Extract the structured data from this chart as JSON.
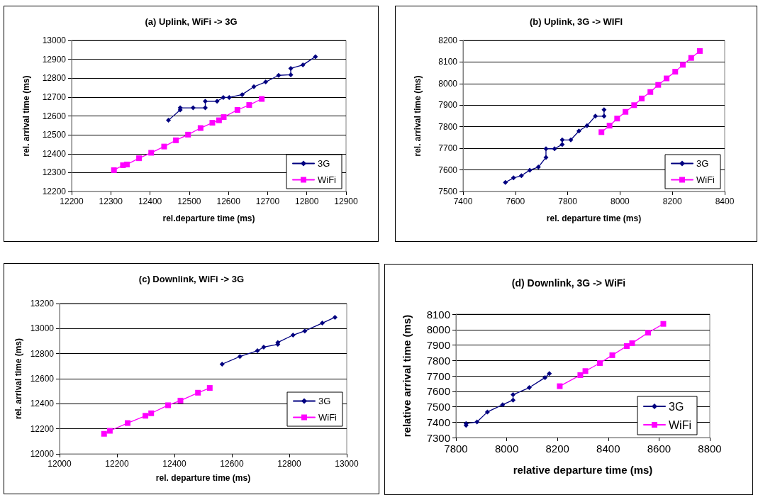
{
  "chart_data": [
    {
      "type": "line",
      "title": "(a) Uplink, WiFi -> 3G",
      "xlabel": "rel.departure time (ms)",
      "ylabel": "rel. arrival time (ms)",
      "xlim": [
        12200,
        12900
      ],
      "xticks": [
        12200,
        12300,
        12400,
        12500,
        12600,
        12700,
        12800,
        12900
      ],
      "ylim": [
        12200,
        13000
      ],
      "yticks": [
        12200,
        12300,
        12400,
        12500,
        12600,
        12700,
        12800,
        12900,
        13000
      ],
      "grid": "y",
      "legend": "bottom right",
      "line_style": "solid",
      "series": [
        {
          "name": "3G",
          "color": "#000080",
          "marker": "diamond",
          "x": [
            12447,
            12477,
            12477,
            12510,
            12541,
            12541,
            12571,
            12587,
            12602,
            12635,
            12665,
            12695,
            12728,
            12759,
            12759,
            12790,
            12822
          ],
          "values": [
            12577,
            12632,
            12643,
            12643,
            12643,
            12678,
            12678,
            12698,
            12698,
            12713,
            12755,
            12780,
            12815,
            12818,
            12852,
            12870,
            12914
          ]
        },
        {
          "name": "WiFi",
          "color": "#ff00ff",
          "marker": "square",
          "x": [
            12308,
            12331,
            12341,
            12372,
            12403,
            12436,
            12466,
            12497,
            12529,
            12559,
            12576,
            12588,
            12623,
            12653,
            12685
          ],
          "values": [
            12313,
            12339,
            12343,
            12376,
            12405,
            12438,
            12471,
            12501,
            12536,
            12564,
            12577,
            12594,
            12632,
            12658,
            12690
          ]
        }
      ]
    },
    {
      "type": "line",
      "title": "(b) Uplink, 3G -> WIFI",
      "xlabel": "rel. departure time (ms)",
      "ylabel": "rel. arrival time (ms)",
      "xlim": [
        7400,
        8400
      ],
      "xticks": [
        7400,
        7600,
        7800,
        8000,
        8200,
        8400
      ],
      "ylim": [
        7500,
        8200
      ],
      "yticks": [
        7500,
        7600,
        7700,
        7800,
        7900,
        8000,
        8100,
        8200
      ],
      "grid": "y",
      "legend": "bottom right",
      "line_style": "solid",
      "series": [
        {
          "name": "3G",
          "color": "#000080",
          "marker": "diamond",
          "x": [
            7562,
            7593,
            7623,
            7655,
            7688,
            7717,
            7717,
            7750,
            7779,
            7779,
            7812,
            7843,
            7874,
            7906,
            7939,
            7939
          ],
          "values": [
            7542,
            7563,
            7573,
            7599,
            7613,
            7658,
            7698,
            7698,
            7718,
            7739,
            7739,
            7780,
            7805,
            7849,
            7849,
            7879
          ]
        },
        {
          "name": "WiFi",
          "color": "#ff00ff",
          "marker": "square",
          "x": [
            7929,
            7960,
            7989,
            8021,
            8054,
            8083,
            8116,
            8146,
            8178,
            8211,
            8240,
            8272,
            8305
          ],
          "values": [
            7775,
            7805,
            7838,
            7869,
            7900,
            7931,
            7961,
            7994,
            8024,
            8055,
            8087,
            8119,
            8151
          ]
        }
      ]
    },
    {
      "type": "line",
      "title": "(c) Downlink, WiFi -> 3G",
      "xlabel": "rel. departure time (ms)",
      "ylabel": "rel. arrival time (ms)",
      "xlim": [
        12000,
        13000
      ],
      "xticks": [
        12000,
        12200,
        12400,
        12600,
        12800,
        13000
      ],
      "ylim": [
        12000,
        13200
      ],
      "yticks": [
        12000,
        12200,
        12400,
        12600,
        12800,
        13000,
        13200
      ],
      "grid": "y",
      "legend": "right",
      "line_style": "solid",
      "series": [
        {
          "name": "3G",
          "color": "#000080",
          "marker": "diamond",
          "x": [
            12566,
            12628,
            12689,
            12711,
            12760,
            12760,
            12813,
            12854,
            12915,
            12959
          ],
          "values": [
            12716,
            12777,
            12823,
            12852,
            12874,
            12889,
            12948,
            12981,
            13044,
            13090
          ]
        },
        {
          "name": "WiFi",
          "color": "#ff00ff",
          "marker": "square",
          "x": [
            12155,
            12175,
            12237,
            12299,
            12319,
            12378,
            12421,
            12482,
            12523
          ],
          "values": [
            12160,
            12184,
            12246,
            12304,
            12324,
            12388,
            12425,
            12488,
            12526
          ]
        }
      ]
    },
    {
      "type": "line",
      "title": "(d) Downlink, 3G -> WiFi",
      "xlabel": "relative departure time (ms)",
      "ylabel": "relative arrival time (ms)",
      "xlim": [
        7800,
        8800
      ],
      "xticks": [
        7800,
        8000,
        8200,
        8400,
        8600,
        8800
      ],
      "ylim": [
        7300,
        8100
      ],
      "yticks": [
        7300,
        7400,
        7500,
        7600,
        7700,
        7800,
        7900,
        8000,
        8100
      ],
      "grid": "y",
      "legend": "bottom right",
      "line_style": "solid",
      "series": [
        {
          "name": "3G",
          "color": "#000080",
          "marker": "diamond",
          "x": [
            7840,
            7840,
            7883,
            7924,
            7984,
            8025,
            8025,
            8089,
            8151,
            8168
          ],
          "values": [
            7379,
            7391,
            7401,
            7466,
            7513,
            7543,
            7578,
            7624,
            7689,
            7715
          ]
        },
        {
          "name": "WiFi",
          "color": "#ff00ff",
          "marker": "square",
          "x": [
            8209,
            8290,
            8310,
            8367,
            8416,
            8473,
            8494,
            8557,
            8617
          ],
          "values": [
            7633,
            7705,
            7731,
            7783,
            7834,
            7893,
            7912,
            7980,
            8037
          ]
        }
      ]
    }
  ]
}
